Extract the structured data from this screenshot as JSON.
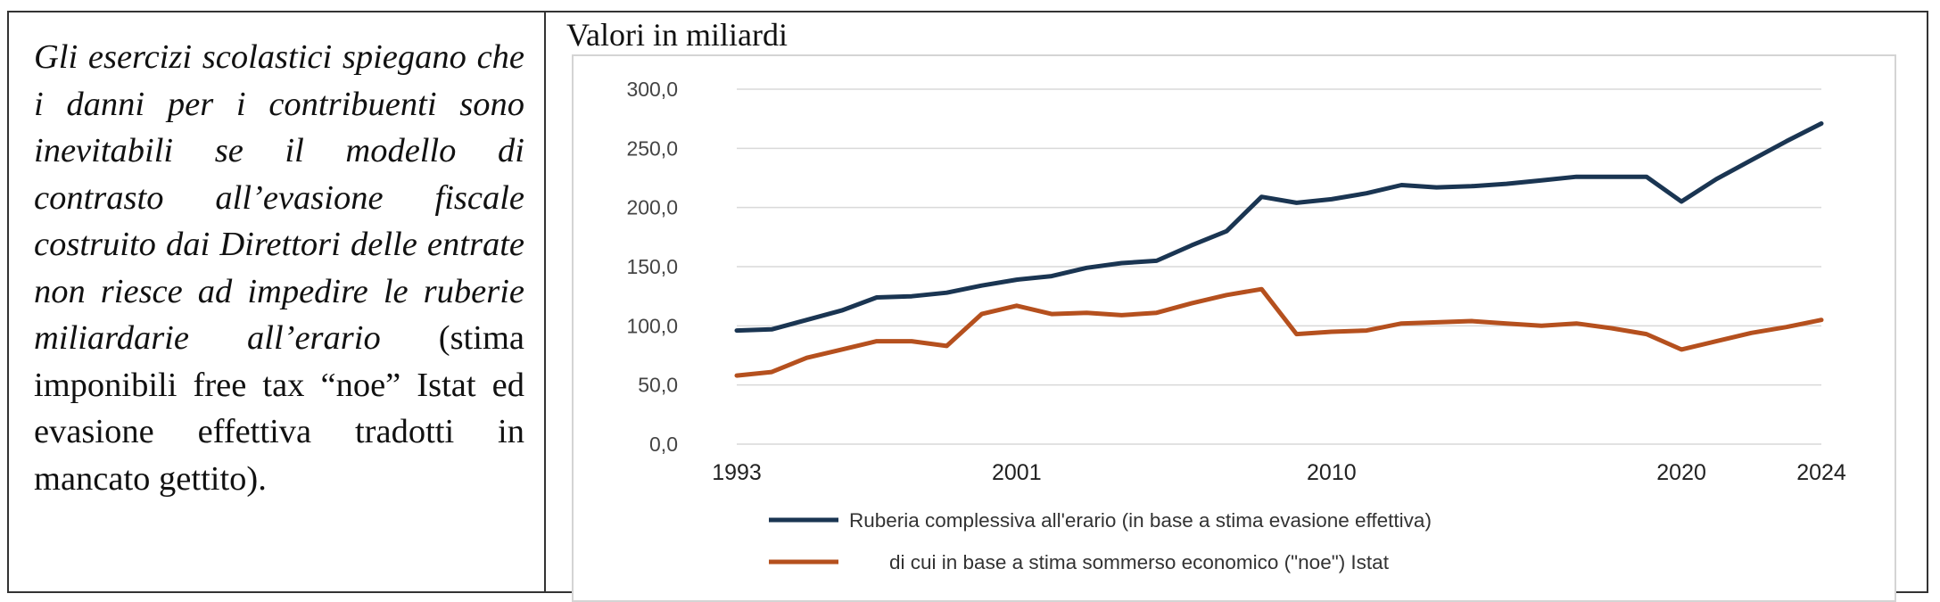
{
  "caption": {
    "italic": "Gli esercizi scolastici spiegano che i danni per i contribuenti sono inevitabili se il modello di contrasto all’evasione fiscale costruito dai Direttori delle entrate non riesce ad impedire le ruberie miliardarie all’erario",
    "plain": " (stima imponibili free tax “noe” Istat ed evasione effettiva tradotti in mancato gettito)."
  },
  "chart_data": {
    "type": "line",
    "title": "Valori in miliardi",
    "xlabel": "",
    "ylabel": "",
    "ylim": [
      0,
      300
    ],
    "xlim": [
      1993,
      2024
    ],
    "y_ticks": [
      "0,0",
      "50,0",
      "100,0",
      "150,0",
      "200,0",
      "250,0",
      "300,0"
    ],
    "x_ticks": [
      "1993",
      "2001",
      "2010",
      "2020",
      "2024"
    ],
    "grid": true,
    "legend_position": "bottom",
    "x": [
      1993,
      1994,
      1995,
      1996,
      1997,
      1998,
      1999,
      2000,
      2001,
      2002,
      2003,
      2004,
      2005,
      2006,
      2007,
      2008,
      2009,
      2010,
      2011,
      2012,
      2013,
      2014,
      2015,
      2016,
      2017,
      2018,
      2019,
      2020,
      2021,
      2022,
      2023,
      2024
    ],
    "series": [
      {
        "name": "Ruberia complessiva all'erario (in base a stima evasione effettiva)",
        "color": "#1a3552",
        "values": [
          96,
          97,
          105,
          113,
          124,
          125,
          128,
          134,
          139,
          142,
          149,
          153,
          155,
          168,
          180,
          209,
          204,
          207,
          212,
          219,
          217,
          218,
          220,
          223,
          226,
          226,
          226,
          205,
          224,
          240,
          256,
          271
        ]
      },
      {
        "name": "di cui in base a stima sommerso economico (\"noe\") Istat",
        "color": "#b5501e",
        "values": [
          58,
          61,
          73,
          80,
          87,
          87,
          83,
          110,
          117,
          110,
          111,
          109,
          111,
          119,
          126,
          131,
          93,
          95,
          96,
          102,
          103,
          104,
          102,
          100,
          102,
          98,
          93,
          80,
          87,
          94,
          99,
          105
        ]
      }
    ]
  }
}
